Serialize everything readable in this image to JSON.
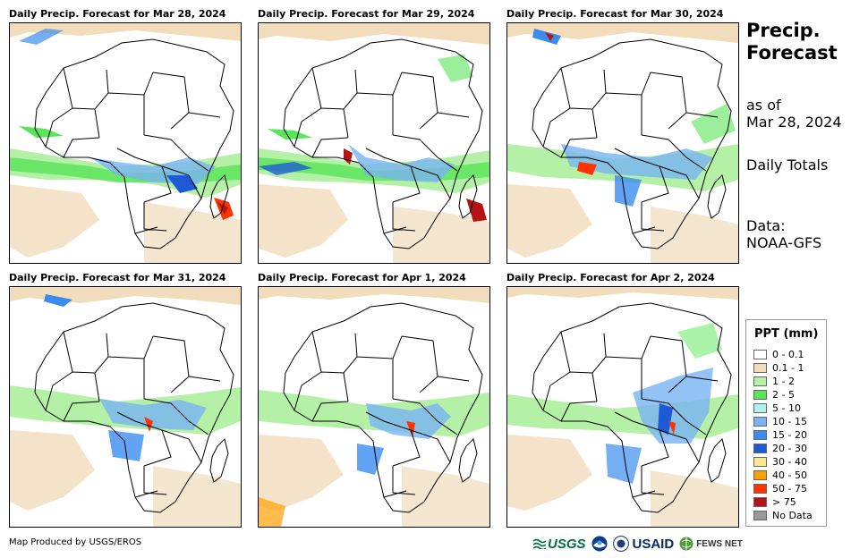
{
  "panels": [
    {
      "title": "Daily Precip. Forecast for Mar 28, 2024"
    },
    {
      "title": "Daily Precip. Forecast for Mar 29, 2024"
    },
    {
      "title": "Daily Precip. Forecast for Mar 30, 2024"
    },
    {
      "title": "Daily Precip. Forecast for Mar 31, 2024"
    },
    {
      "title": "Daily Precip. Forecast for Apr 1, 2024"
    },
    {
      "title": "Daily Precip. Forecast for Apr 2, 2024"
    }
  ],
  "side": {
    "title_line1": "Precip.",
    "title_line2": "Forecast",
    "asof_line1": "as of",
    "asof_line2": "Mar 28, 2024",
    "totals": "Daily Totals",
    "data_line1": "Data:",
    "data_line2": "NOAA-GFS"
  },
  "legend": {
    "title": "PPT (mm)",
    "items": [
      {
        "label": "0 - 0.1",
        "color": "#ffffff"
      },
      {
        "label": "0.1 - 1",
        "color": "#f1dcbc"
      },
      {
        "label": "1 - 2",
        "color": "#b4f0a6"
      },
      {
        "label": "2 - 5",
        "color": "#58e558"
      },
      {
        "label": "5 - 10",
        "color": "#aef2f0"
      },
      {
        "label": "10 - 15",
        "color": "#78b4f2"
      },
      {
        "label": "15 - 20",
        "color": "#3c8cf0"
      },
      {
        "label": "20 - 30",
        "color": "#1f5ad6"
      },
      {
        "label": "30 - 40",
        "color": "#ffe690"
      },
      {
        "label": "40 - 50",
        "color": "#ffa000"
      },
      {
        "label": "50 - 75",
        "color": "#ff3200"
      },
      {
        "label": "> 75",
        "color": "#b41414"
      },
      {
        "label": "No Data",
        "color": "#999999"
      }
    ]
  },
  "credit": "Map Produced by USGS/EROS",
  "logos": {
    "usgs": "USGS",
    "usaid": "USAID",
    "fews": "FEWS NET"
  },
  "icons": {
    "usgs": "usgs-logo-icon",
    "noaa": "noaa-logo-icon",
    "dos": "state-dept-seal-icon",
    "fews": "fews-globe-icon"
  }
}
